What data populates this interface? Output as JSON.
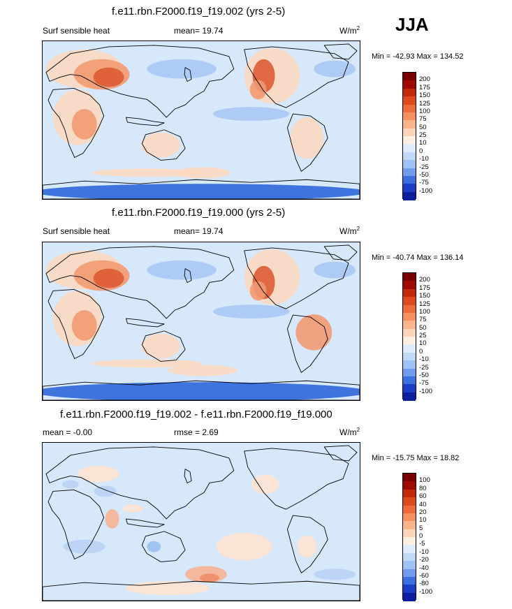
{
  "season": "JJA",
  "chart_data": [
    {
      "type": "heatmap",
      "title": "f.e11.rbn.F2000.f19_f19.002 (yrs 2-5)",
      "variable": "Surf sensible heat",
      "mean_label": "mean=  19.74",
      "units": "W/m",
      "units_sup": "2",
      "minmax": "Min = -42.93 Max = 134.52",
      "min": -42.93,
      "max": 134.52,
      "colorbar_levels": [
        "200",
        "175",
        "150",
        "125",
        "100",
        "75",
        "50",
        "25",
        "10",
        "0",
        "-10",
        "-25",
        "-50",
        "-75",
        "-100"
      ],
      "colorbar_colors": [
        "#7a0000",
        "#9e0a00",
        "#c22a0a",
        "#dc4a1e",
        "#ee6b3b",
        "#f6915f",
        "#f9b48c",
        "#fcd4b8",
        "#fdeee0",
        "#deecfb",
        "#bfd9f7",
        "#9dc3f3",
        "#6f9deb",
        "#3e6fdf",
        "#1d3fc6",
        "#0c1f9e"
      ],
      "map_colors": {
        "ocean": "#d7e8fb",
        "cold": "#a9c8f3",
        "very_cold": "#2f66d9",
        "warm": "#fcd9c0",
        "hot": "#f19a72",
        "very_hot": "#dd5b34"
      }
    },
    {
      "type": "heatmap",
      "title": "f.e11.rbn.F2000.f19_f19.000 (yrs 2-5)",
      "variable": "Surf sensible heat",
      "mean_label": "mean=  19.74",
      "units": "W/m",
      "units_sup": "2",
      "minmax": "Min = -40.74 Max = 136.14",
      "min": -40.74,
      "max": 136.14,
      "colorbar_levels": [
        "200",
        "175",
        "150",
        "125",
        "100",
        "75",
        "50",
        "25",
        "10",
        "0",
        "-10",
        "-25",
        "-50",
        "-75",
        "-100"
      ],
      "colorbar_colors": [
        "#7a0000",
        "#9e0a00",
        "#c22a0a",
        "#dc4a1e",
        "#ee6b3b",
        "#f6915f",
        "#f9b48c",
        "#fcd4b8",
        "#fdeee0",
        "#deecfb",
        "#bfd9f7",
        "#9dc3f3",
        "#6f9deb",
        "#3e6fdf",
        "#1d3fc6",
        "#0c1f9e"
      ],
      "map_colors": {
        "ocean": "#d7e8fb",
        "cold": "#a9c8f3",
        "very_cold": "#2f66d9",
        "warm": "#fcd9c0",
        "hot": "#f19a72",
        "very_hot": "#dd5b34"
      }
    },
    {
      "type": "heatmap",
      "title": "f.e11.rbn.F2000.f19_f19.002 - f.e11.rbn.F2000.f19_f19.000",
      "left_label": "mean =  -0.00",
      "rmse_label": "rmse =   2.69",
      "units": "W/m",
      "units_sup": "2",
      "minmax": "Min = -15.75 Max =  18.82",
      "min": -15.75,
      "max": 18.82,
      "colorbar_levels": [
        "100",
        "80",
        "60",
        "40",
        "20",
        "10",
        "5",
        "0",
        "-5",
        "-10",
        "-20",
        "-40",
        "-60",
        "-80",
        "-100"
      ],
      "colorbar_colors": [
        "#7a0000",
        "#9e0a00",
        "#c22a0a",
        "#dc4a1e",
        "#ee6b3b",
        "#f6915f",
        "#f9b48c",
        "#fcd4b8",
        "#fdeee0",
        "#deecfb",
        "#bfd9f7",
        "#9dc3f3",
        "#6f9deb",
        "#3e6fdf",
        "#1d3fc6",
        "#0c1f9e"
      ],
      "map_colors": {
        "ocean": "#d7e8fb",
        "cold": "#b9d3f5",
        "very_cold": "#9cc0f0",
        "warm": "#fde3d0",
        "hot": "#f6b292",
        "very_hot": "#ef8d68"
      }
    }
  ]
}
